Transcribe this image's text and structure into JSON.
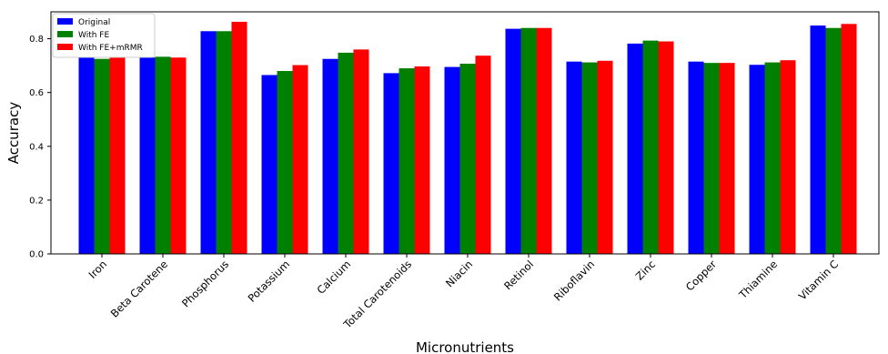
{
  "chart_data": {
    "type": "bar",
    "title": "",
    "xlabel": "Micronutrients",
    "ylabel": "Accuracy",
    "ylim": [
      0,
      0.9
    ],
    "yticks": [
      0.0,
      0.2,
      0.4,
      0.6,
      0.8
    ],
    "ytick_labels": [
      "0.0",
      "0.2",
      "0.4",
      "0.6",
      "0.8"
    ],
    "grid": false,
    "legend_position": "top-left",
    "categories": [
      "Iron",
      "Beta Carotene",
      "Phosphorus",
      "Potassium",
      "Calcium",
      "Total Carotenoids",
      "Niacin",
      "Retinol",
      "Riboflavin",
      "Zinc",
      "Copper",
      "Thiamine",
      "Vitamin C"
    ],
    "series": [
      {
        "name": "Original",
        "color": "#0000ff",
        "values": [
          0.73,
          0.73,
          0.828,
          0.665,
          0.725,
          0.672,
          0.695,
          0.837,
          0.715,
          0.782,
          0.715,
          0.703,
          0.849
        ]
      },
      {
        "name": "With FE",
        "color": "#008000",
        "values": [
          0.725,
          0.733,
          0.828,
          0.68,
          0.748,
          0.69,
          0.707,
          0.84,
          0.712,
          0.793,
          0.71,
          0.712,
          0.84
        ]
      },
      {
        "name": "With FE+mRMR",
        "color": "#ff0000",
        "values": [
          0.74,
          0.73,
          0.863,
          0.702,
          0.76,
          0.697,
          0.737,
          0.84,
          0.718,
          0.79,
          0.71,
          0.72,
          0.855
        ]
      }
    ]
  }
}
